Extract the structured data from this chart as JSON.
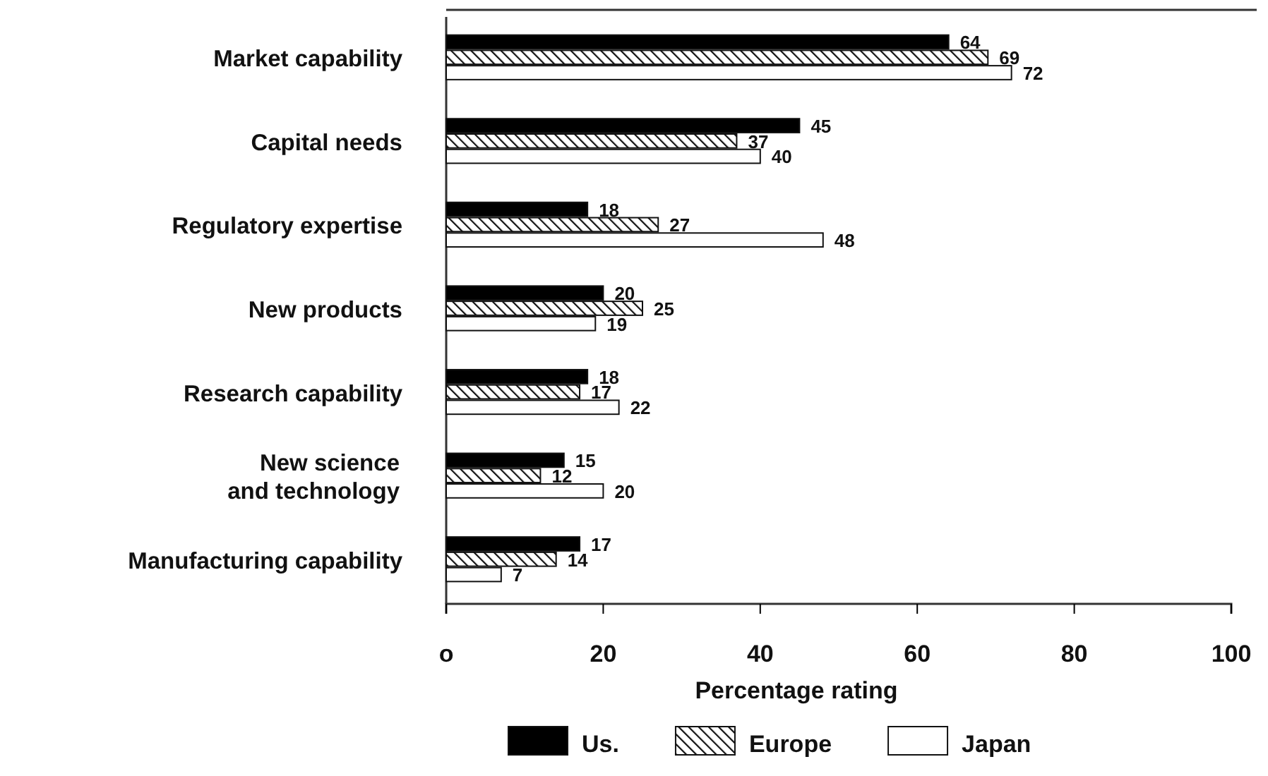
{
  "chart_data": {
    "type": "bar",
    "orientation": "horizontal",
    "xlabel": "Percentage rating",
    "categories": [
      "Market capability",
      "Capital needs",
      "Regulatory expertise",
      "New products",
      "Research capability",
      "New science and technology",
      "Manufacturing capability"
    ],
    "series": [
      {
        "name": "Us.",
        "color": "#000000",
        "values": [
          64,
          45,
          18,
          20,
          18,
          15,
          17
        ]
      },
      {
        "name": "Europe",
        "color": "#111111",
        "values": [
          69,
          37,
          27,
          25,
          17,
          12,
          14
        ]
      },
      {
        "name": "Japan",
        "color": "#ffffff",
        "values": [
          72,
          40,
          48,
          19,
          22,
          20,
          7
        ]
      }
    ],
    "xlim": [
      0,
      100
    ],
    "xticks": [
      {
        "value": 0,
        "label": "o"
      },
      20,
      40,
      60,
      80,
      100
    ],
    "data_labels": true,
    "legend": "bottom",
    "grid": false
  }
}
